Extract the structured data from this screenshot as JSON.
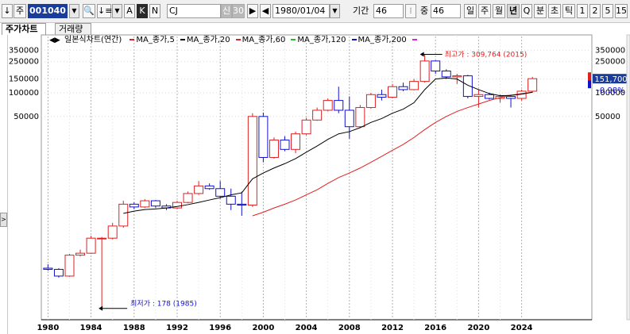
{
  "toolbar": {
    "btn_down": "↓",
    "btn_stock": "주",
    "code": "001040",
    "name": "CJ",
    "flag1": "신",
    "flag2": "30",
    "date": "1980/01/04",
    "period_label": "기간",
    "period_value": "46",
    "count_label": "중",
    "count_value": "46",
    "intervals": [
      "일",
      "주",
      "월",
      "년",
      "Q",
      "분",
      "초",
      "틱",
      "1",
      "2",
      "5",
      "15"
    ],
    "selected_interval": "년",
    "modes": [
      "A",
      "K",
      "N"
    ],
    "active_mode": "K"
  },
  "tabs": [
    "주가차트",
    "거래량"
  ],
  "legend": {
    "main": "일본식차트(연간)",
    "items": [
      {
        "label": "MA_종가,5",
        "color": "#e02020"
      },
      {
        "label": "MA_종가,20",
        "color": "#000000"
      },
      {
        "label": "MA_종가,60",
        "color": "#e02020"
      },
      {
        "label": "MA_종가,120",
        "color": "#20c020"
      },
      {
        "label": "MA_종가,200",
        "color": "#1010c0"
      }
    ],
    "end_marker_color": "#e020e0"
  },
  "price_box": {
    "price": "151,700",
    "change": "-0.98%"
  },
  "annotations": {
    "high": "최고가 : 309,764 (2015)",
    "low": "최저가 : 178 (1985)"
  },
  "colors": {
    "up": "#e02020",
    "down": "#1010d0",
    "ma20": "#000000",
    "ma60": "#e02020"
  },
  "chart_data": {
    "type": "candlestick",
    "title": "일본식차트(연간)",
    "y_scale": "log",
    "y_ticks_left": [
      "350000",
      "250000",
      "150000",
      "100000",
      "50000"
    ],
    "y_ticks_right": [
      "350000",
      "250000",
      "150000",
      "100000",
      "50000"
    ],
    "x_ticks": [
      "1980",
      "1984",
      "1988",
      "1992",
      "1996",
      "2000",
      "2004",
      "2008",
      "2012",
      "2016",
      "2020",
      "2024"
    ],
    "grid": true,
    "candles": [
      {
        "year": 1980,
        "open": 580,
        "close": 560,
        "high": 650,
        "low": 540
      },
      {
        "year": 1981,
        "open": 560,
        "close": 460,
        "high": 580,
        "low": 440
      },
      {
        "year": 1982,
        "open": 460,
        "close": 850,
        "high": 880,
        "low": 450
      },
      {
        "year": 1983,
        "open": 850,
        "close": 900,
        "high": 1000,
        "low": 820
      },
      {
        "year": 1984,
        "open": 900,
        "close": 1400,
        "high": 1500,
        "low": 880
      },
      {
        "year": 1985,
        "open": 1400,
        "close": 1400,
        "high": 1450,
        "low": 178
      },
      {
        "year": 1986,
        "open": 1400,
        "close": 2000,
        "high": 2200,
        "low": 1350
      },
      {
        "year": 1987,
        "open": 2000,
        "close": 3800,
        "high": 4200,
        "low": 1900
      },
      {
        "year": 1988,
        "open": 3800,
        "close": 3500,
        "high": 4000,
        "low": 3300
      },
      {
        "year": 1989,
        "open": 3500,
        "close": 4200,
        "high": 4400,
        "low": 3400
      },
      {
        "year": 1990,
        "open": 4200,
        "close": 3600,
        "high": 4300,
        "low": 3400
      },
      {
        "year": 1991,
        "open": 3600,
        "close": 3400,
        "high": 3800,
        "low": 3200
      },
      {
        "year": 1992,
        "open": 3400,
        "close": 4000,
        "high": 4200,
        "low": 3300
      },
      {
        "year": 1993,
        "open": 4000,
        "close": 5200,
        "high": 5500,
        "low": 3900
      },
      {
        "year": 1994,
        "open": 5200,
        "close": 6500,
        "high": 7500,
        "low": 5000
      },
      {
        "year": 1995,
        "open": 6500,
        "close": 6000,
        "high": 7000,
        "low": 5800
      },
      {
        "year": 1996,
        "open": 6000,
        "close": 4800,
        "high": 7500,
        "low": 4500
      },
      {
        "year": 1997,
        "open": 4800,
        "close": 3800,
        "high": 6000,
        "low": 3200
      },
      {
        "year": 1998,
        "open": 3800,
        "close": 3700,
        "high": 5500,
        "low": 2700
      },
      {
        "year": 1999,
        "open": 3700,
        "close": 50000,
        "high": 55000,
        "low": 3500
      },
      {
        "year": 2000,
        "open": 50000,
        "close": 15000,
        "high": 56000,
        "low": 13000
      },
      {
        "year": 2001,
        "open": 15000,
        "close": 25000,
        "high": 27000,
        "low": 14500
      },
      {
        "year": 2002,
        "open": 25000,
        "close": 19000,
        "high": 28000,
        "low": 18000
      },
      {
        "year": 2003,
        "open": 19000,
        "close": 30000,
        "high": 32000,
        "low": 17000
      },
      {
        "year": 2004,
        "open": 30000,
        "close": 45000,
        "high": 48000,
        "low": 29000
      },
      {
        "year": 2005,
        "open": 45000,
        "close": 60000,
        "high": 65000,
        "low": 44000
      },
      {
        "year": 2006,
        "open": 60000,
        "close": 80000,
        "high": 85000,
        "low": 58000
      },
      {
        "year": 2007,
        "open": 80000,
        "close": 60000,
        "high": 120000,
        "low": 55000
      },
      {
        "year": 2008,
        "open": 60000,
        "close": 37000,
        "high": 90000,
        "low": 26000
      },
      {
        "year": 2009,
        "open": 37000,
        "close": 65000,
        "high": 70000,
        "low": 36000
      },
      {
        "year": 2010,
        "open": 65000,
        "close": 95000,
        "high": 100000,
        "low": 63000
      },
      {
        "year": 2011,
        "open": 95000,
        "close": 88000,
        "high": 110000,
        "low": 80000
      },
      {
        "year": 2012,
        "open": 88000,
        "close": 120000,
        "high": 130000,
        "low": 85000
      },
      {
        "year": 2013,
        "open": 120000,
        "close": 110000,
        "high": 135000,
        "low": 105000
      },
      {
        "year": 2014,
        "open": 110000,
        "close": 140000,
        "high": 150000,
        "low": 108000
      },
      {
        "year": 2015,
        "open": 140000,
        "close": 255000,
        "high": 309764,
        "low": 135000
      },
      {
        "year": 2016,
        "open": 255000,
        "close": 190000,
        "high": 260000,
        "low": 175000
      },
      {
        "year": 2017,
        "open": 190000,
        "close": 160000,
        "high": 200000,
        "low": 150000
      },
      {
        "year": 2018,
        "open": 160000,
        "close": 165000,
        "high": 175000,
        "low": 130000
      },
      {
        "year": 2019,
        "open": 165000,
        "close": 90000,
        "high": 170000,
        "low": 85000
      },
      {
        "year": 2020,
        "open": 90000,
        "close": 95000,
        "high": 110000,
        "low": 65000
      },
      {
        "year": 2021,
        "open": 95000,
        "close": 85000,
        "high": 100000,
        "low": 82000
      },
      {
        "year": 2022,
        "open": 85000,
        "close": 90000,
        "high": 95000,
        "low": 75000
      },
      {
        "year": 2023,
        "open": 90000,
        "close": 85000,
        "high": 95000,
        "low": 65000
      },
      {
        "year": 2024,
        "open": 85000,
        "close": 105000,
        "high": 110000,
        "low": 80000
      },
      {
        "year": 2025,
        "open": 105000,
        "close": 151700,
        "high": 160000,
        "low": 100000
      }
    ],
    "ma20": [
      {
        "year": 1987,
        "value": 2900
      },
      {
        "year": 1988,
        "value": 3100
      },
      {
        "year": 1989,
        "value": 3250
      },
      {
        "year": 1990,
        "value": 3300
      },
      {
        "year": 1991,
        "value": 3400
      },
      {
        "year": 1992,
        "value": 3550
      },
      {
        "year": 1993,
        "value": 3750
      },
      {
        "year": 1994,
        "value": 4000
      },
      {
        "year": 1995,
        "value": 4300
      },
      {
        "year": 1996,
        "value": 4600
      },
      {
        "year": 1997,
        "value": 5000
      },
      {
        "year": 1998,
        "value": 5300
      },
      {
        "year": 1999,
        "value": 8000
      },
      {
        "year": 2000,
        "value": 9500
      },
      {
        "year": 2001,
        "value": 11000
      },
      {
        "year": 2002,
        "value": 12500
      },
      {
        "year": 2003,
        "value": 14500
      },
      {
        "year": 2004,
        "value": 17500
      },
      {
        "year": 2005,
        "value": 21000
      },
      {
        "year": 2006,
        "value": 25500
      },
      {
        "year": 2007,
        "value": 30000
      },
      {
        "year": 2008,
        "value": 32000
      },
      {
        "year": 2009,
        "value": 36000
      },
      {
        "year": 2010,
        "value": 42000
      },
      {
        "year": 2011,
        "value": 47000
      },
      {
        "year": 2012,
        "value": 55000
      },
      {
        "year": 2013,
        "value": 62000
      },
      {
        "year": 2014,
        "value": 75000
      },
      {
        "year": 2015,
        "value": 110000
      },
      {
        "year": 2016,
        "value": 150000
      },
      {
        "year": 2017,
        "value": 155000
      },
      {
        "year": 2018,
        "value": 150000
      },
      {
        "year": 2019,
        "value": 125000
      },
      {
        "year": 2020,
        "value": 110000
      },
      {
        "year": 2021,
        "value": 98000
      },
      {
        "year": 2022,
        "value": 92000
      },
      {
        "year": 2023,
        "value": 93000
      },
      {
        "year": 2024,
        "value": 96000
      },
      {
        "year": 2025,
        "value": 102000
      }
    ],
    "ma60": [
      {
        "year": 1999,
        "value": 2700
      },
      {
        "year": 2000,
        "value": 3000
      },
      {
        "year": 2001,
        "value": 3400
      },
      {
        "year": 2002,
        "value": 3800
      },
      {
        "year": 2003,
        "value": 4300
      },
      {
        "year": 2004,
        "value": 5000
      },
      {
        "year": 2005,
        "value": 5800
      },
      {
        "year": 2006,
        "value": 7000
      },
      {
        "year": 2007,
        "value": 8300
      },
      {
        "year": 2008,
        "value": 9500
      },
      {
        "year": 2009,
        "value": 11000
      },
      {
        "year": 2010,
        "value": 13000
      },
      {
        "year": 2011,
        "value": 15500
      },
      {
        "year": 2012,
        "value": 18500
      },
      {
        "year": 2013,
        "value": 22000
      },
      {
        "year": 2014,
        "value": 27000
      },
      {
        "year": 2015,
        "value": 34000
      },
      {
        "year": 2016,
        "value": 42000
      },
      {
        "year": 2017,
        "value": 50000
      },
      {
        "year": 2018,
        "value": 58000
      },
      {
        "year": 2019,
        "value": 65000
      },
      {
        "year": 2020,
        "value": 72000
      },
      {
        "year": 2021,
        "value": 80000
      },
      {
        "year": 2022,
        "value": 87000
      },
      {
        "year": 2023,
        "value": 93000
      },
      {
        "year": 2024,
        "value": 98000
      },
      {
        "year": 2025,
        "value": 102000
      }
    ],
    "high_point": {
      "year": 2015,
      "value": 309764
    },
    "low_point": {
      "year": 1985,
      "value": 178
    }
  }
}
